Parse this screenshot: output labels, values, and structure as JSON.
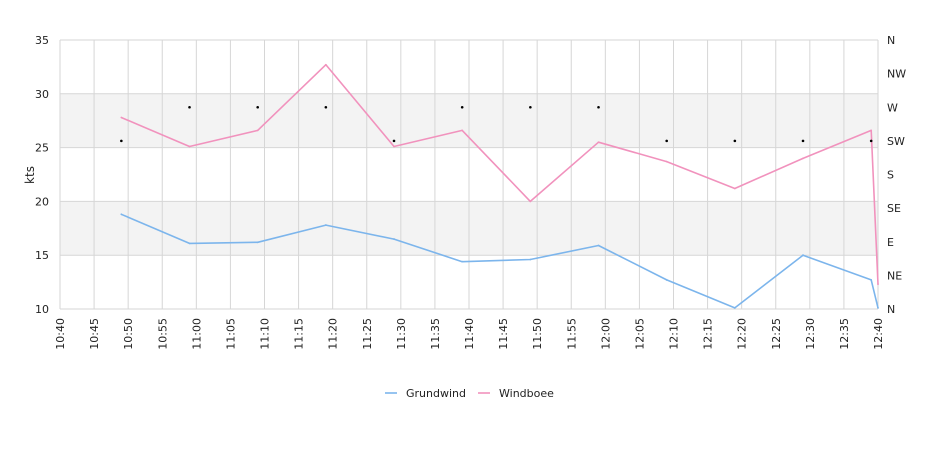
{
  "chart_data": {
    "type": "line",
    "ylabel": "kts",
    "ylim": [
      10,
      35
    ],
    "yticks": [
      "10",
      "15",
      "20",
      "25",
      "30",
      "35"
    ],
    "bands": [
      [
        15,
        20
      ],
      [
        25,
        30
      ]
    ],
    "direction_ticks": [
      "N",
      "NE",
      "E",
      "SE",
      "S",
      "SW",
      "W",
      "NW",
      "N"
    ],
    "xticks": [
      "10:40",
      "10:45",
      "10:50",
      "10:55",
      "11:00",
      "11:05",
      "11:10",
      "11:15",
      "11:20",
      "11:25",
      "11:30",
      "11:35",
      "11:40",
      "11:45",
      "11:50",
      "11:55",
      "12:00",
      "12:05",
      "12:10",
      "12:15",
      "12:20",
      "12:25",
      "12:30",
      "12:35",
      "12:40"
    ],
    "x": [
      "10:49",
      "10:59",
      "11:09",
      "11:19",
      "11:29",
      "11:39",
      "11:49",
      "11:59",
      "12:09",
      "12:19",
      "12:29",
      "12:39",
      "12:40"
    ],
    "series": [
      {
        "name": "Grundwind",
        "color": "#7cb5ec",
        "values": [
          18.8,
          16.1,
          16.2,
          17.8,
          16.5,
          14.4,
          14.6,
          15.9,
          12.7,
          10.1,
          15.0,
          12.7,
          10.1
        ]
      },
      {
        "name": "Windboee",
        "color": "#f192bd",
        "values": [
          27.8,
          25.1,
          26.6,
          32.7,
          25.1,
          26.6,
          20.0,
          25.5,
          23.7,
          21.2,
          24.0,
          26.6,
          12.3
        ]
      }
    ],
    "direction": {
      "x": [
        "10:49",
        "10:59",
        "11:09",
        "11:19",
        "11:29",
        "11:39",
        "11:49",
        "11:59",
        "12:09",
        "12:19",
        "12:29",
        "12:39"
      ],
      "values": [
        "SW",
        "W",
        "W",
        "W",
        "SW",
        "W",
        "W",
        "W",
        "SW",
        "SW",
        "SW",
        "SW"
      ]
    },
    "grid": true,
    "legend": "bottom-center"
  }
}
